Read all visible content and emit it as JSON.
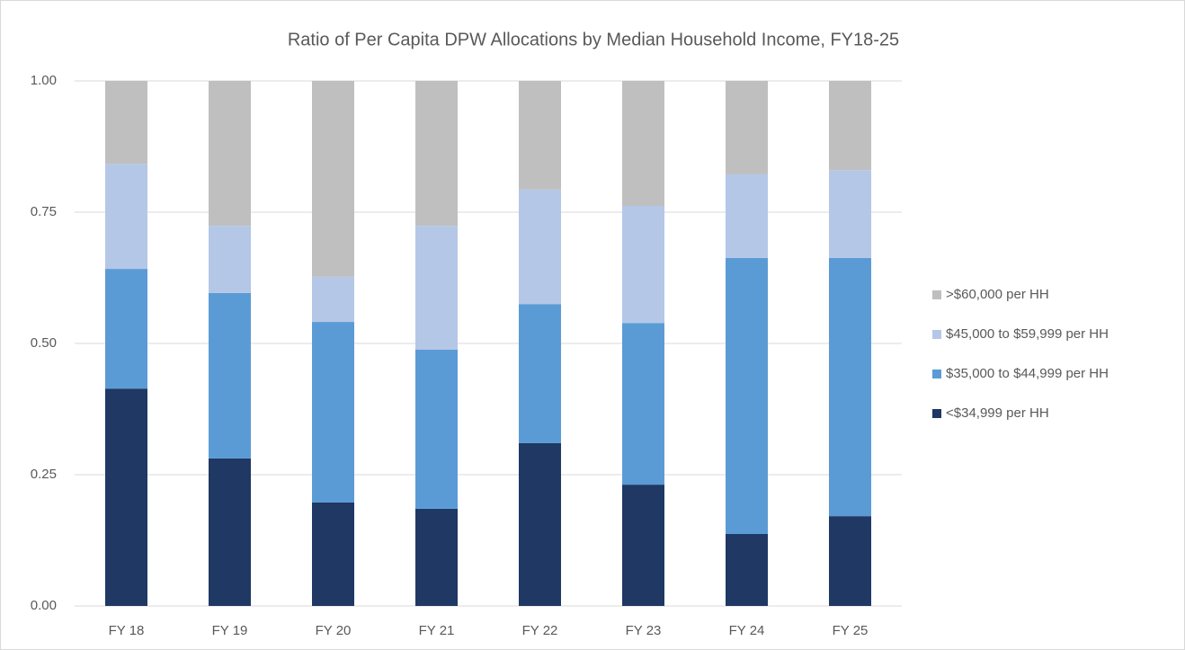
{
  "chart_data": {
    "type": "stacked_bar",
    "title": "Ratio of Per Capita DPW Allocations by Median Household Income, FY18-25",
    "categories": [
      "FY 18",
      "FY 19",
      "FY 20",
      "FY 21",
      "FY 22",
      "FY 23",
      "FY 24",
      "FY 25"
    ],
    "series": [
      {
        "name": "<$34,999 per HH",
        "color": "#1f3864",
        "values": [
          0.414,
          0.281,
          0.197,
          0.185,
          0.31,
          0.231,
          0.137,
          0.171
        ]
      },
      {
        "name": "$35,000 to $44,999 per HH",
        "color": "#5b9bd5",
        "values": [
          0.228,
          0.315,
          0.344,
          0.303,
          0.265,
          0.308,
          0.526,
          0.492
        ]
      },
      {
        "name": "$45,000 to $59,999 per HH",
        "color": "#b4c7e7",
        "values": [
          0.2,
          0.128,
          0.086,
          0.236,
          0.218,
          0.223,
          0.159,
          0.167
        ]
      },
      {
        "name": ">$60,000 per HH",
        "color": "#bfbfbf",
        "values": [
          0.158,
          0.276,
          0.373,
          0.276,
          0.207,
          0.238,
          0.178,
          0.17
        ]
      }
    ],
    "ylim": [
      0,
      1
    ],
    "yticks": [
      {
        "value": 0,
        "label": "0.00"
      },
      0.25,
      {
        "value": 0.5,
        "label": "0.50"
      },
      0.75,
      {
        "value": 1,
        "label": "1.00"
      }
    ],
    "grid": true,
    "legend": "right"
  }
}
